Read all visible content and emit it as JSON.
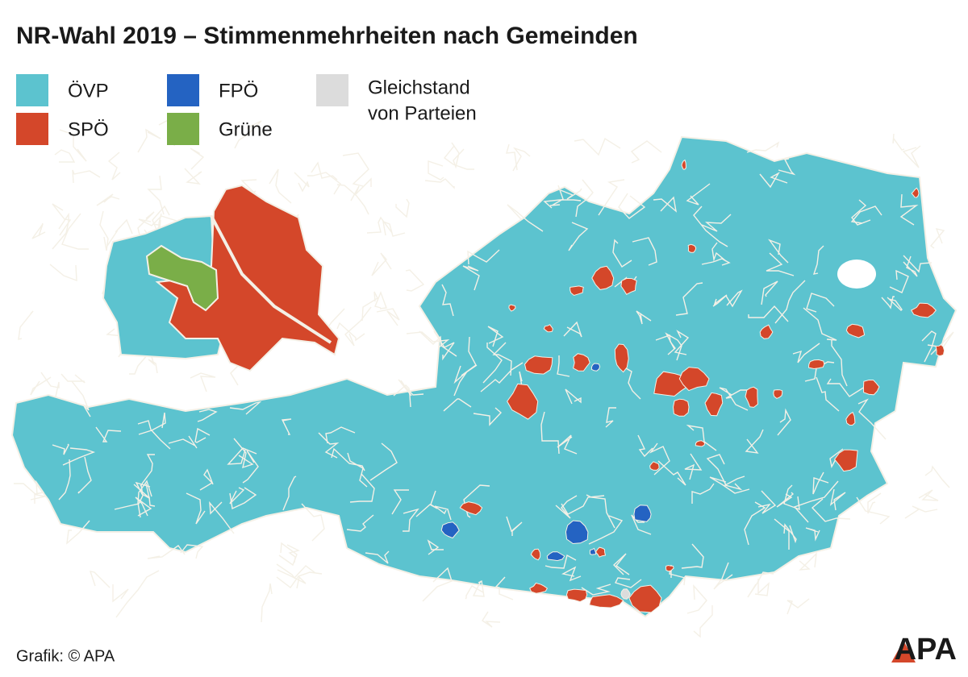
{
  "title": "NR-Wahl 2019 – Stimmenmehrheiten nach Gemeinden",
  "legend": [
    {
      "lines": [
        "ÖVP"
      ],
      "color": "#5cc3cf"
    },
    {
      "lines": [
        "SPÖ"
      ],
      "color": "#d4472a"
    },
    {
      "lines": [
        "FPÖ"
      ],
      "color": "#2463c2"
    },
    {
      "lines": [
        "Grüne"
      ],
      "color": "#7aae48"
    },
    {
      "lines": [
        "Gleichstand",
        "von Parteien"
      ],
      "color": "#dcdcdc"
    }
  ],
  "credit": "Grafik: © APA",
  "logo": "APA"
}
